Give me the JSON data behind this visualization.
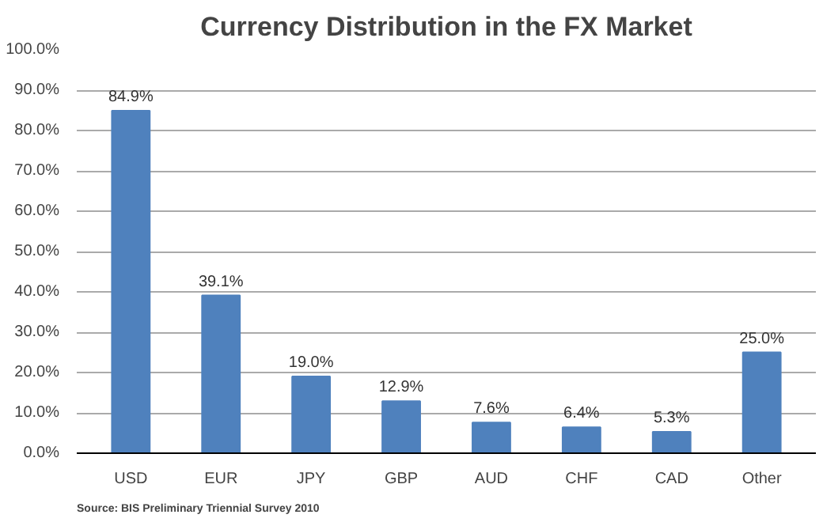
{
  "chart_data": {
    "type": "bar",
    "title": "Currency Distribution in the FX Market",
    "categories": [
      "USD",
      "EUR",
      "JPY",
      "GBP",
      "AUD",
      "CHF",
      "CAD",
      "Other"
    ],
    "values": [
      84.9,
      39.1,
      19.0,
      12.9,
      7.6,
      6.4,
      5.3,
      25.0
    ],
    "value_labels": [
      "84.9%",
      "39.1%",
      "19.0%",
      "12.9%",
      "7.6%",
      "6.4%",
      "5.3%",
      "25.0%"
    ],
    "color": "#4f81bd",
    "ylim": [
      0,
      100
    ],
    "yticks": [
      {
        "value": 0,
        "label": "0.0%"
      },
      {
        "value": 10,
        "label": "10.0%"
      },
      {
        "value": 20,
        "label": "20.0%"
      },
      {
        "value": 30,
        "label": "30.0%"
      },
      {
        "value": 40,
        "label": "40.0%"
      },
      {
        "value": 50,
        "label": "50.0%"
      },
      {
        "value": 60,
        "label": "60.0%"
      },
      {
        "value": 70,
        "label": "70.0%"
      },
      {
        "value": 80,
        "label": "80.0%"
      },
      {
        "value": 90,
        "label": "90.0%"
      },
      {
        "value": 100,
        "label": "100.0%"
      }
    ],
    "grid": "y",
    "annotations": [
      "Source: BIS Preliminary Triennial Survey  2010"
    ]
  }
}
